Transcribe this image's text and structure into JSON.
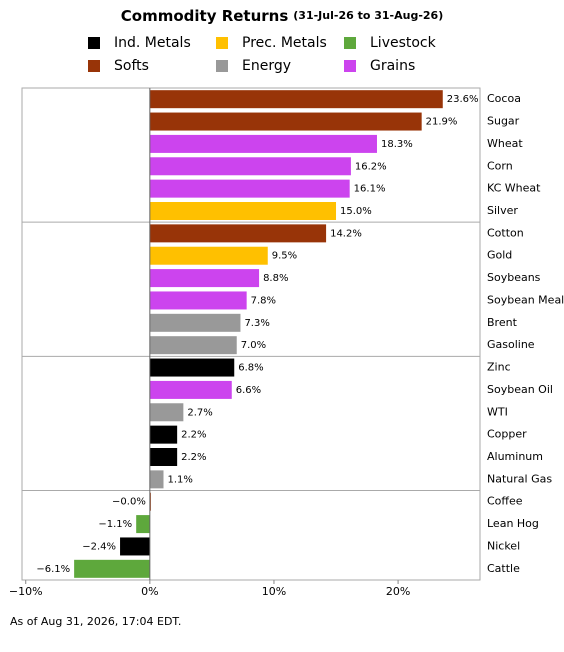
{
  "chart_data": {
    "type": "bar",
    "orientation": "horizontal",
    "title": "Commodity Returns",
    "subtitle": "(31-Jul-26 to 31-Aug-26)",
    "categories": [
      "Cocoa",
      "Sugar",
      "Wheat",
      "Corn",
      "KC Wheat",
      "Silver",
      "Cotton",
      "Gold",
      "Soybeans",
      "Soybean Meal",
      "Brent",
      "Gasoline",
      "Zinc",
      "Soybean Oil",
      "WTI",
      "Copper",
      "Aluminum",
      "Natural Gas",
      "Coffee",
      "Lean Hog",
      "Nickel",
      "Cattle"
    ],
    "series": [
      {
        "name": "Ind. Metals",
        "color": "#000000",
        "values": [
          null,
          null,
          null,
          null,
          null,
          null,
          null,
          null,
          null,
          null,
          null,
          null,
          6.8,
          null,
          null,
          2.2,
          2.2,
          null,
          null,
          null,
          -2.4,
          null
        ],
        "value_labels": [
          null,
          null,
          null,
          null,
          null,
          null,
          null,
          null,
          null,
          null,
          null,
          null,
          "6.8%",
          null,
          null,
          "2.2%",
          "2.2%",
          null,
          null,
          null,
          "−2.4%",
          null
        ]
      },
      {
        "name": "Prec. Metals",
        "color": "#ffc000",
        "values": [
          null,
          null,
          null,
          null,
          null,
          15.0,
          null,
          9.5,
          null,
          null,
          null,
          null,
          null,
          null,
          null,
          null,
          null,
          null,
          null,
          null,
          null,
          null
        ],
        "value_labels": [
          null,
          null,
          null,
          null,
          null,
          "15.0%",
          null,
          "9.5%",
          null,
          null,
          null,
          null,
          null,
          null,
          null,
          null,
          null,
          null,
          null,
          null,
          null,
          null
        ]
      },
      {
        "name": "Livestock",
        "color": "#5ea83c",
        "values": [
          null,
          null,
          null,
          null,
          null,
          null,
          null,
          null,
          null,
          null,
          null,
          null,
          null,
          null,
          null,
          null,
          null,
          null,
          null,
          -1.1,
          null,
          -6.1
        ],
        "value_labels": [
          null,
          null,
          null,
          null,
          null,
          null,
          null,
          null,
          null,
          null,
          null,
          null,
          null,
          null,
          null,
          null,
          null,
          null,
          null,
          "−1.1%",
          null,
          "−6.1%"
        ]
      },
      {
        "name": "Softs",
        "color": "#983408",
        "values": [
          23.6,
          21.9,
          null,
          null,
          null,
          null,
          14.2,
          null,
          null,
          null,
          null,
          null,
          null,
          null,
          null,
          null,
          null,
          null,
          -0.0,
          null,
          null,
          null
        ],
        "value_labels": [
          "23.6%",
          "21.9%",
          null,
          null,
          null,
          null,
          "14.2%",
          null,
          null,
          null,
          null,
          null,
          null,
          null,
          null,
          null,
          null,
          null,
          "−0.0%",
          null,
          null,
          null
        ]
      },
      {
        "name": "Energy",
        "color": "#999999",
        "values": [
          null,
          null,
          null,
          null,
          null,
          null,
          null,
          null,
          null,
          null,
          7.3,
          7.0,
          null,
          null,
          2.7,
          null,
          null,
          1.1,
          null,
          null,
          null,
          null
        ],
        "value_labels": [
          null,
          null,
          null,
          null,
          null,
          null,
          null,
          null,
          null,
          null,
          "7.3%",
          "7.0%",
          null,
          null,
          "2.7%",
          null,
          null,
          "1.1%",
          null,
          null,
          null,
          null
        ]
      },
      {
        "name": "Grains",
        "color": "#cc44ee",
        "values": [
          null,
          null,
          18.3,
          16.2,
          16.1,
          null,
          null,
          null,
          8.8,
          7.8,
          null,
          null,
          null,
          6.6,
          null,
          null,
          null,
          null,
          null,
          null,
          null,
          null
        ],
        "value_labels": [
          null,
          null,
          "18.3%",
          "16.2%",
          "16.1%",
          null,
          null,
          null,
          "8.8%",
          "7.8%",
          null,
          null,
          null,
          "6.6%",
          null,
          null,
          null,
          null,
          null,
          null,
          null,
          null
        ]
      }
    ],
    "xlim": [
      -10.3,
      26.6
    ],
    "xticks": [
      {
        "value": -10,
        "label": "−10%"
      },
      {
        "value": 0,
        "label": "0%"
      },
      {
        "value": 10,
        "label": "10%"
      },
      {
        "value": 20,
        "label": "20%"
      }
    ],
    "footnote": "As of Aug 31, 2026, 17:04 EDT."
  }
}
